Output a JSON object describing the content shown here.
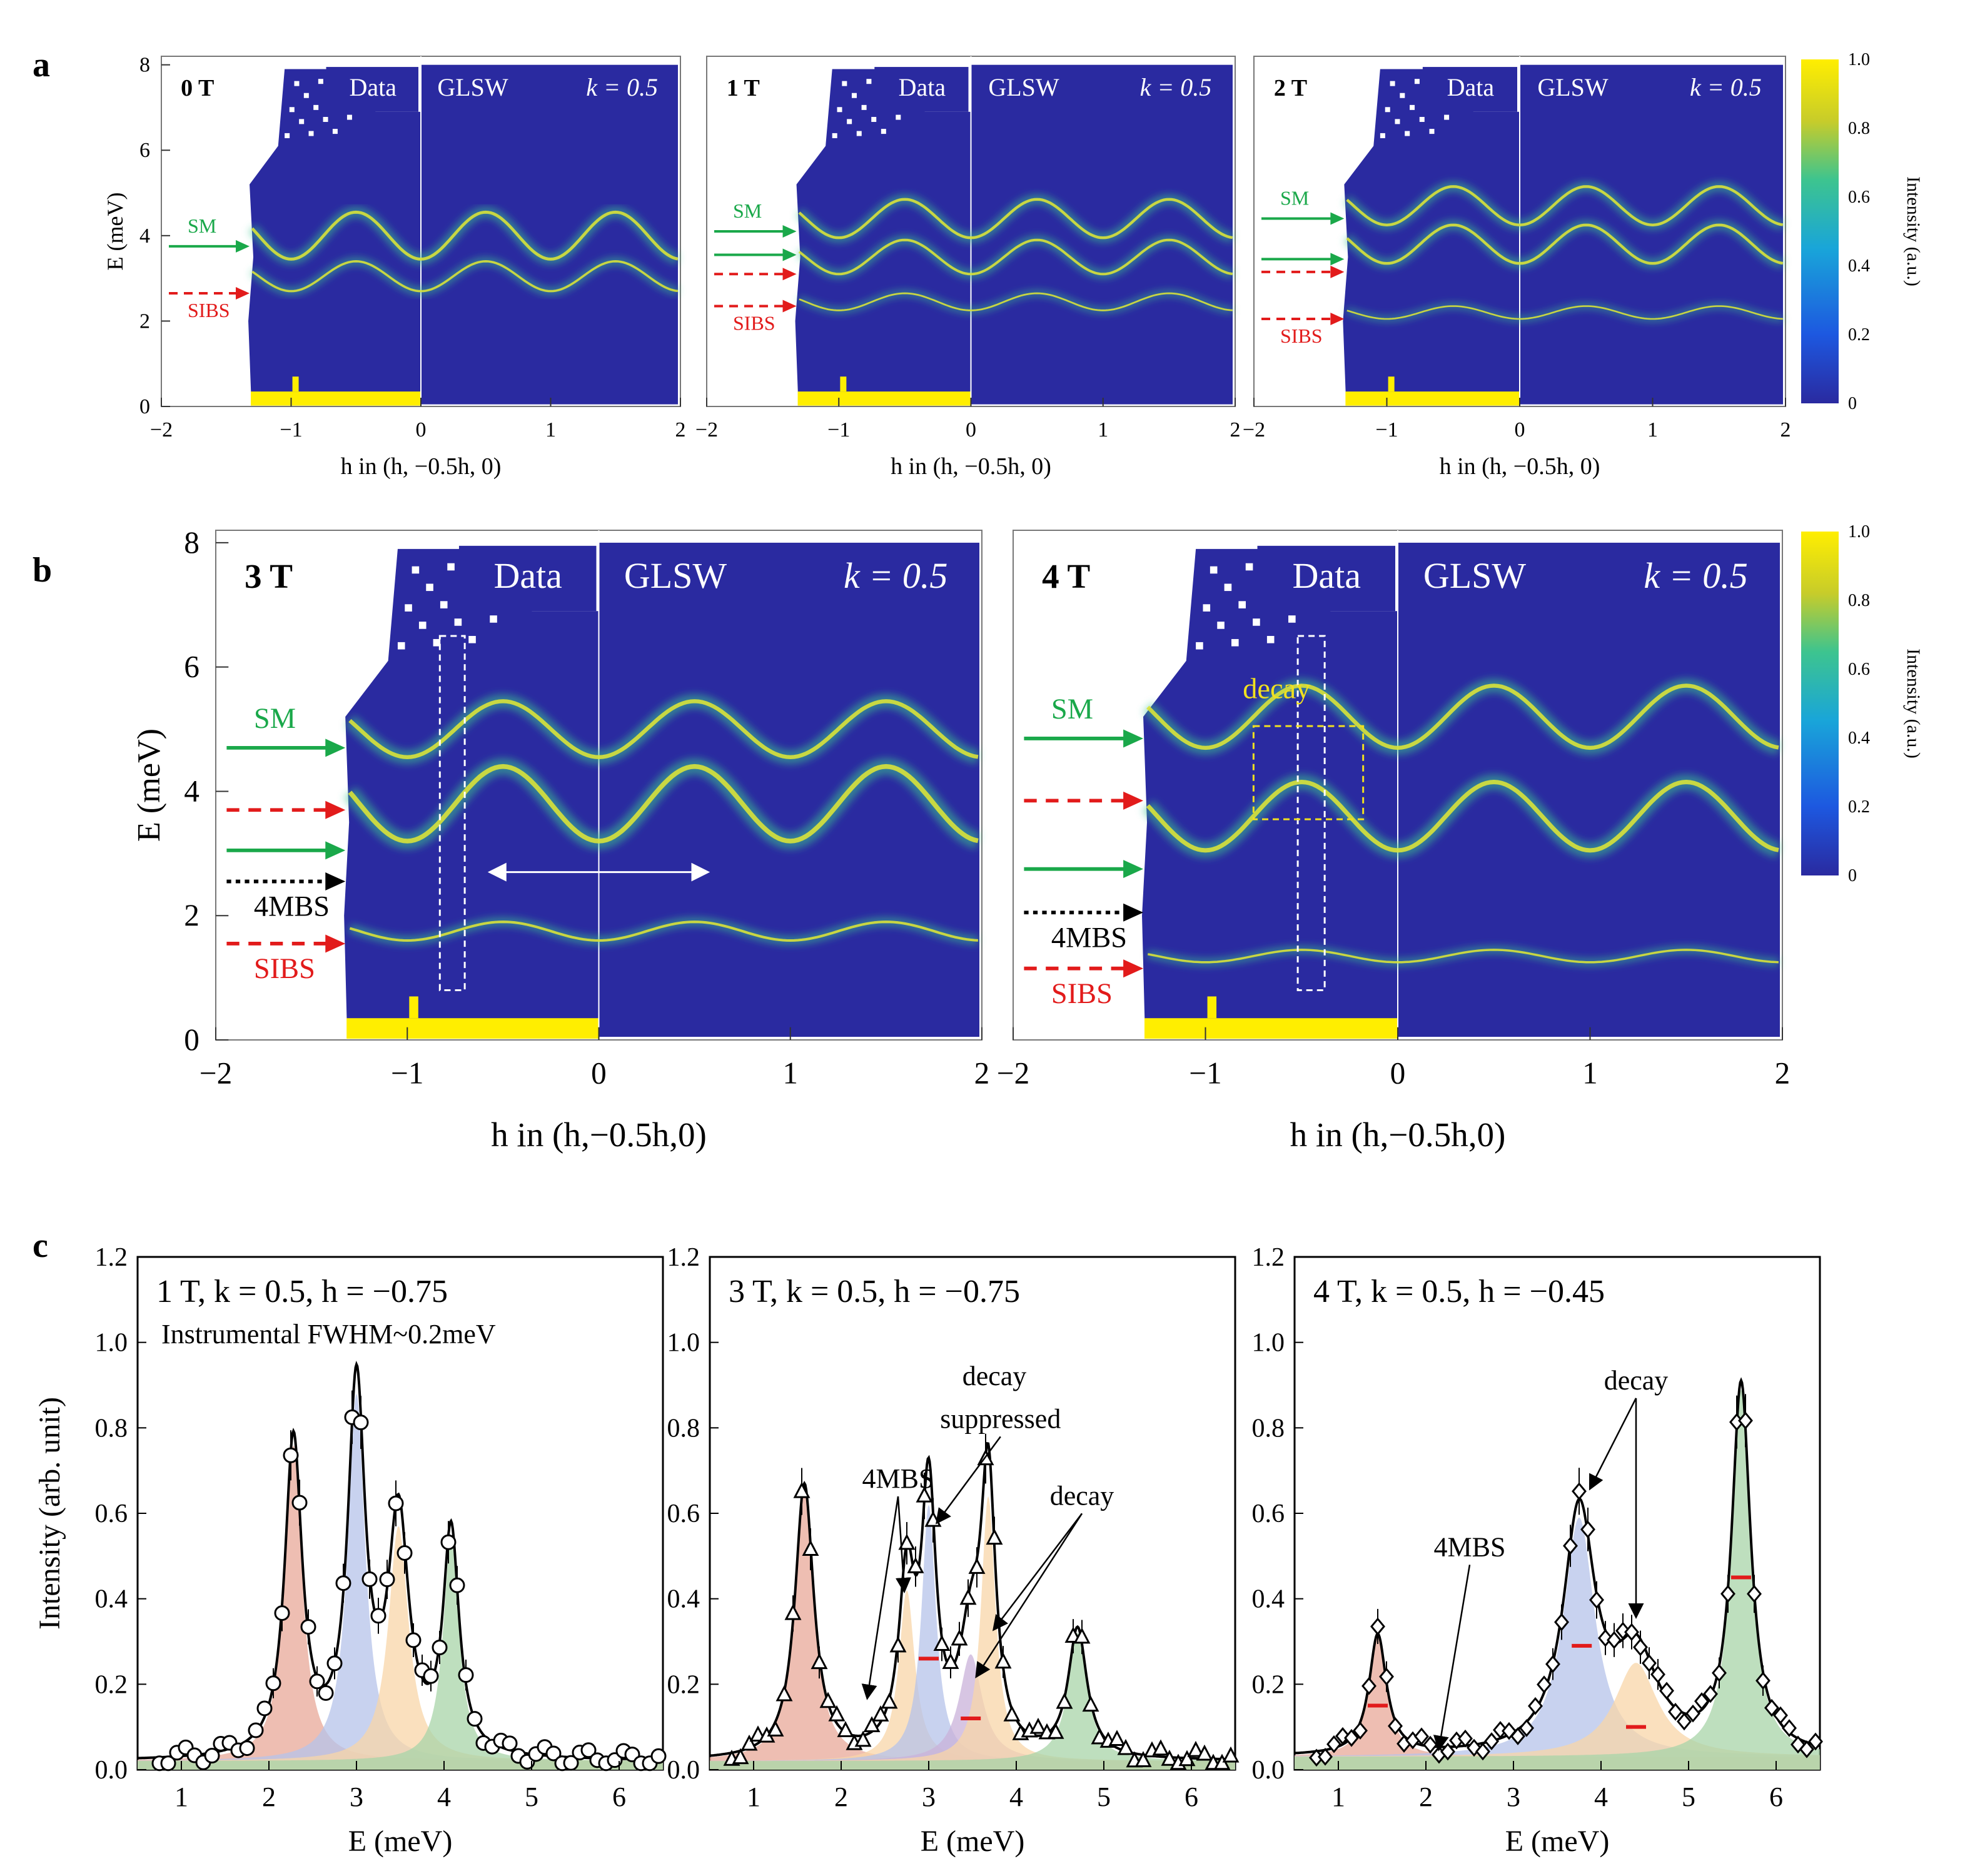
{
  "figure": {
    "row_labels": [
      "a",
      "b",
      "c"
    ],
    "colorbar": {
      "ticks": [
        "1.0",
        "0.8",
        "0.6",
        "0.4",
        "0.2",
        "0"
      ],
      "label": "Intensity (a.u.)",
      "colors": [
        "#2a2aa0",
        "#1d58e0",
        "#19a5d9",
        "#3dc48f",
        "#c7cc2a",
        "#ffee00"
      ]
    }
  },
  "chart_data": [
    {
      "type": "heatmap",
      "panel": "a",
      "field": "0 T",
      "label_data": "Data",
      "label_model": "GLSW",
      "label_k": "k = 0.5",
      "xlabel": "h in (h, −0.5h, 0)",
      "ylabel": "E (meV)",
      "xlim": [
        -2,
        2
      ],
      "ylim": [
        0,
        8.2
      ],
      "xticks": [
        "−2",
        "−1",
        "0",
        "1",
        "2"
      ],
      "yticks": [
        "0",
        "2",
        "4",
        "6",
        "8"
      ],
      "annotations": [
        {
          "text": "SM",
          "kind": "solid",
          "color": "#1aa84a",
          "e": 3.75
        },
        {
          "text": "SIBS",
          "kind": "dashed",
          "color": "#e21b1b",
          "e": 2.65
        }
      ],
      "modes": [
        {
          "base": 4.0,
          "amp": 0.55,
          "w": 2.4
        },
        {
          "base": 3.05,
          "amp": 0.35,
          "w": 1.8
        }
      ]
    },
    {
      "type": "heatmap",
      "panel": "a",
      "field": "1 T",
      "label_data": "Data",
      "label_model": "GLSW",
      "label_k": "k = 0.5",
      "xlabel": "h in (h, −0.5h, 0)",
      "ylabel": "",
      "xlim": [
        -2,
        2
      ],
      "ylim": [
        0,
        8.2
      ],
      "xticks": [
        "−2",
        "−1",
        "0",
        "1",
        "2"
      ],
      "yticks": [],
      "annotations": [
        {
          "text": "SM",
          "kind": "solid",
          "color": "#1aa84a",
          "e": 4.1
        },
        {
          "text": "",
          "kind": "solid",
          "color": "#1aa84a",
          "e": 3.55
        },
        {
          "text": "",
          "kind": "dashed",
          "color": "#e21b1b",
          "e": 3.1
        },
        {
          "text": "SIBS",
          "kind": "dashed",
          "color": "#e21b1b",
          "e": 2.35
        }
      ],
      "modes": [
        {
          "base": 4.4,
          "amp": 0.45,
          "w": 2.2
        },
        {
          "base": 3.5,
          "amp": 0.4,
          "w": 2.0
        },
        {
          "base": 2.45,
          "amp": 0.2,
          "w": 1.4
        }
      ]
    },
    {
      "type": "heatmap",
      "panel": "a",
      "field": "2 T",
      "label_data": "Data",
      "label_model": "GLSW",
      "label_k": "k = 0.5",
      "xlabel": "h in (h, −0.5h, 0)",
      "ylabel": "",
      "xlim": [
        -2,
        2
      ],
      "ylim": [
        0,
        8.2
      ],
      "xticks": [
        "−2",
        "−1",
        "0",
        "1",
        "2"
      ],
      "yticks": [],
      "annotations": [
        {
          "text": "SM",
          "kind": "solid",
          "color": "#1aa84a",
          "e": 4.4
        },
        {
          "text": "",
          "kind": "solid",
          "color": "#1aa84a",
          "e": 3.45
        },
        {
          "text": "",
          "kind": "dashed",
          "color": "#e21b1b",
          "e": 3.15
        },
        {
          "text": "SIBS",
          "kind": "dashed",
          "color": "#e21b1b",
          "e": 2.05
        }
      ],
      "modes": [
        {
          "base": 4.7,
          "amp": 0.45,
          "w": 2.2
        },
        {
          "base": 3.8,
          "amp": 0.45,
          "w": 2.2
        },
        {
          "base": 2.2,
          "amp": 0.15,
          "w": 1.3
        }
      ]
    },
    {
      "type": "heatmap",
      "panel": "b",
      "field": "3 T",
      "label_data": "Data",
      "label_model": "GLSW",
      "label_k": "k = 0.5",
      "xlabel": "h in (h,−0.5h,0)",
      "ylabel": "E (meV)",
      "xlim": [
        -2,
        2
      ],
      "ylim": [
        0,
        8.2
      ],
      "xticks": [
        "−2",
        "−1",
        "0",
        "1",
        "2"
      ],
      "yticks": [
        "0",
        "2",
        "4",
        "6",
        "8"
      ],
      "annotations": [
        {
          "text": "SM",
          "kind": "solid",
          "color": "#1aa84a",
          "e": 4.7
        },
        {
          "text": "",
          "kind": "dashed",
          "color": "#e21b1b",
          "e": 3.7
        },
        {
          "text": "",
          "kind": "solid",
          "color": "#1aa84a",
          "e": 3.05
        },
        {
          "text": "4MBS",
          "kind": "dotted",
          "color": "#000000",
          "e": 2.55
        },
        {
          "text": "SIBS",
          "kind": "dashed",
          "color": "#e21b1b",
          "e": 1.55
        }
      ],
      "markers": [
        {
          "kind": "dashed-box",
          "h_range": [
            -0.83,
            -0.7
          ],
          "e_range": [
            0.8,
            6.5
          ]
        },
        {
          "kind": "double-arrow",
          "h_range": [
            -0.6,
            0.6
          ],
          "e": 2.7
        }
      ],
      "modes": [
        {
          "base": 5.0,
          "amp": 0.45,
          "w": 2.2
        },
        {
          "base": 3.8,
          "amp": 0.6,
          "w": 2.6
        },
        {
          "base": 1.75,
          "amp": 0.15,
          "w": 1.4
        }
      ]
    },
    {
      "type": "heatmap",
      "panel": "b",
      "field": "4 T",
      "label_data": "Data",
      "label_model": "GLSW",
      "label_k": "k = 0.5",
      "xlabel": "h in (h,−0.5h,0)",
      "ylabel": "",
      "xlim": [
        -2,
        2
      ],
      "ylim": [
        0,
        8.2
      ],
      "xticks": [
        "−2",
        "−1",
        "0",
        "1",
        "2"
      ],
      "yticks": [],
      "annotations": [
        {
          "text": "SM",
          "kind": "solid",
          "color": "#1aa84a",
          "e": 4.85
        },
        {
          "text": "",
          "kind": "dashed",
          "color": "#e21b1b",
          "e": 3.85
        },
        {
          "text": "",
          "kind": "solid",
          "color": "#1aa84a",
          "e": 2.75
        },
        {
          "text": "4MBS",
          "kind": "dotted",
          "color": "#000000",
          "e": 2.05
        },
        {
          "text": "SIBS",
          "kind": "dashed",
          "color": "#e21b1b",
          "e": 1.15
        }
      ],
      "decay_label": "decay",
      "markers": [
        {
          "kind": "dashed-box",
          "h_range": [
            -0.52,
            -0.38
          ],
          "e_range": [
            0.8,
            6.5
          ]
        },
        {
          "kind": "decay-box",
          "h_range": [
            -0.75,
            -0.18
          ],
          "e_range": [
            3.55,
            5.05
          ]
        }
      ],
      "modes": [
        {
          "base": 5.2,
          "amp": 0.5,
          "w": 2.2
        },
        {
          "base": 3.6,
          "amp": 0.55,
          "w": 2.4
        },
        {
          "base": 1.35,
          "amp": 0.1,
          "w": 1.2
        }
      ]
    },
    {
      "type": "line",
      "panel": "c",
      "title": "1 T, k = 0.5, h = −0.75",
      "note": "Instrumental FWHM~0.2meV",
      "marker": "circle",
      "xlabel": "E (meV)",
      "ylabel": "Intensity (arb. unit)",
      "xlim": [
        0.5,
        6.5
      ],
      "ylim": [
        0,
        1.2
      ],
      "xticks": [
        "1",
        "2",
        "3",
        "4",
        "5",
        "6"
      ],
      "yticks": [
        "0.0",
        "0.2",
        "0.4",
        "0.6",
        "0.8",
        "1.0",
        "1.2"
      ],
      "peaks": [
        {
          "center": 2.28,
          "height": 0.74,
          "hwhm": 0.12,
          "color": "#e8a898"
        },
        {
          "center": 3.0,
          "height": 0.86,
          "hwhm": 0.12,
          "color": "#b5c3ea"
        },
        {
          "center": 3.48,
          "height": 0.55,
          "hwhm": 0.14,
          "color": "#f8d6a8"
        },
        {
          "center": 4.08,
          "height": 0.52,
          "hwhm": 0.11,
          "color": "#a8d4a8"
        }
      ],
      "background": 0.02,
      "arrows": []
    },
    {
      "type": "line",
      "panel": "c",
      "title": "3 T, k = 0.5, h = −0.75",
      "note": "",
      "marker": "triangle",
      "xlabel": "E (meV)",
      "ylabel": "",
      "xlim": [
        0.5,
        6.5
      ],
      "ylim": [
        0,
        1.2
      ],
      "xticks": [
        "1",
        "2",
        "3",
        "4",
        "5",
        "6"
      ],
      "yticks": [
        "0.0",
        "0.2",
        "0.4",
        "0.6",
        "0.8",
        "1.0",
        "1.2"
      ],
      "peaks": [
        {
          "center": 1.58,
          "height": 0.64,
          "hwhm": 0.13,
          "color": "#e8a898"
        },
        {
          "center": 2.75,
          "height": 0.4,
          "hwhm": 0.11,
          "color": "#f8d6a8"
        },
        {
          "center": 3.0,
          "height": 0.6,
          "hwhm": 0.1,
          "color": "#b5c3ea"
        },
        {
          "center": 3.48,
          "height": 0.25,
          "hwhm": 0.16,
          "color": "#c9b2d9"
        },
        {
          "center": 3.68,
          "height": 0.62,
          "hwhm": 0.1,
          "color": "#f8d6a8"
        },
        {
          "center": 4.7,
          "height": 0.3,
          "hwhm": 0.13,
          "color": "#a8d4a8"
        }
      ],
      "background": 0.02,
      "red_bars": [
        {
          "e": 3.0,
          "y": 0.26
        },
        {
          "e": 3.48,
          "y": 0.12
        }
      ],
      "arrows": [
        {
          "text": "4MBS",
          "tx": 2.65,
          "ty": 0.66,
          "targets": [
            [
              2.3,
              0.17
            ],
            [
              2.72,
              0.42
            ]
          ]
        },
        {
          "text": "decay",
          "tx": 3.75,
          "ty": 0.9,
          "targets": []
        },
        {
          "text": "suppressed",
          "tx": 3.82,
          "ty": 0.8,
          "targets": [
            [
              3.1,
              0.58
            ]
          ]
        },
        {
          "text": "decay",
          "tx": 4.75,
          "ty": 0.62,
          "targets": [
            [
              3.55,
              0.22
            ],
            [
              3.75,
              0.33
            ]
          ]
        }
      ]
    },
    {
      "type": "line",
      "panel": "c",
      "title": "4 T, k = 0.5, h = −0.45",
      "note": "",
      "marker": "diamond",
      "xlabel": "E (meV)",
      "ylabel": "",
      "xlim": [
        0.5,
        6.5
      ],
      "ylim": [
        0,
        1.2
      ],
      "xticks": [
        "1",
        "2",
        "3",
        "4",
        "5",
        "6"
      ],
      "yticks": [
        "0.0",
        "0.2",
        "0.4",
        "0.6",
        "0.8",
        "1.0",
        "1.2"
      ],
      "peaks": [
        {
          "center": 1.45,
          "height": 0.28,
          "hwhm": 0.12,
          "color": "#e8a898"
        },
        {
          "center": 3.75,
          "height": 0.56,
          "hwhm": 0.22,
          "color": "#b5c3ea"
        },
        {
          "center": 4.4,
          "height": 0.22,
          "hwhm": 0.3,
          "color": "#f8d6a8"
        },
        {
          "center": 5.6,
          "height": 0.86,
          "hwhm": 0.13,
          "color": "#a8d4a8"
        }
      ],
      "background": 0.03,
      "red_bars": [
        {
          "e": 1.45,
          "y": 0.15
        },
        {
          "e": 3.78,
          "y": 0.29
        },
        {
          "e": 4.4,
          "y": 0.1
        },
        {
          "e": 5.6,
          "y": 0.45
        }
      ],
      "arrows": [
        {
          "text": "4MBS",
          "tx": 2.5,
          "ty": 0.5,
          "targets": [
            [
              2.15,
              0.05
            ]
          ]
        },
        {
          "text": "decay",
          "tx": 4.4,
          "ty": 0.89,
          "targets": [
            [
              3.88,
              0.66
            ],
            [
              4.4,
              0.36
            ]
          ]
        }
      ]
    }
  ]
}
